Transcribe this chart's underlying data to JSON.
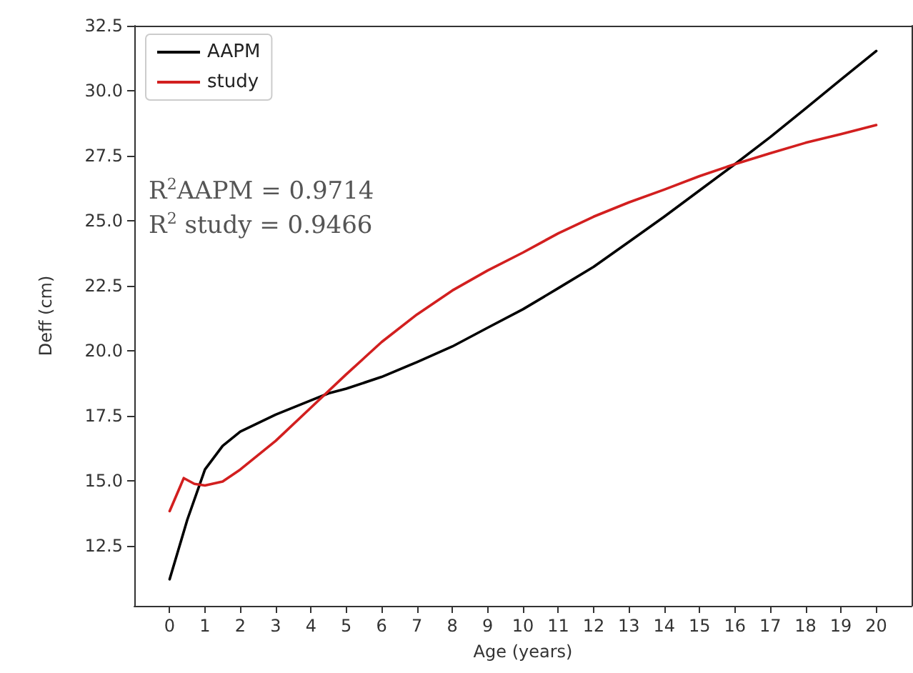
{
  "chart_data": {
    "type": "line",
    "xlabel": "Age (years)",
    "ylabel": "Deff (cm)",
    "x": [
      0,
      0.5,
      1,
      1.5,
      2,
      3,
      4,
      4.5,
      5,
      6,
      7,
      8,
      9,
      10,
      11,
      12,
      13,
      14,
      15,
      16,
      17,
      18,
      19,
      20
    ],
    "series": [
      {
        "name": "AAPM",
        "color": "#000000",
        "values": [
          11.22,
          13.51,
          15.44,
          16.35,
          16.9,
          17.55,
          18.1,
          18.37,
          18.55,
          19.0,
          19.57,
          20.17,
          20.89,
          21.6,
          22.41,
          23.23,
          24.19,
          25.16,
          26.17,
          27.18,
          28.22,
          29.32,
          30.43,
          31.53
        ]
      },
      {
        "name": "study",
        "color": "#d21f1f",
        "x": [
          0,
          0.4,
          0.7,
          1,
          1.5,
          2,
          3,
          4,
          5,
          6,
          7,
          8,
          9,
          10,
          11,
          12,
          13,
          14,
          15,
          16,
          17,
          18,
          19,
          20
        ],
        "values": [
          13.84,
          15.11,
          14.89,
          14.83,
          14.98,
          15.44,
          16.54,
          17.82,
          19.1,
          20.34,
          21.4,
          22.32,
          23.09,
          23.78,
          24.52,
          25.16,
          25.71,
          26.2,
          26.72,
          27.18,
          27.6,
          28.0,
          28.33,
          28.68
        ]
      }
    ],
    "xlim": [
      -1,
      21
    ],
    "xticks": [
      0,
      1,
      2,
      3,
      4,
      5,
      6,
      7,
      8,
      9,
      10,
      11,
      12,
      13,
      14,
      15,
      16,
      17,
      18,
      19,
      20
    ],
    "ylim": [
      10.2,
      32.5
    ],
    "yticks": [
      12.5,
      {
        "value": 15,
        "label": "15.0"
      },
      17.5,
      {
        "value": 20,
        "label": "20.0"
      },
      22.5,
      {
        "value": 25,
        "label": "25.0"
      },
      27.5,
      {
        "value": 30,
        "label": "30.0"
      },
      32.5
    ],
    "annotations": [
      "R$^{2}$AAPM = 0.9714",
      "R$^{2}$ study = 0.9466"
    ],
    "legend": "top left",
    "grid": false,
    "marker": "none",
    "line_style": "solid"
  }
}
